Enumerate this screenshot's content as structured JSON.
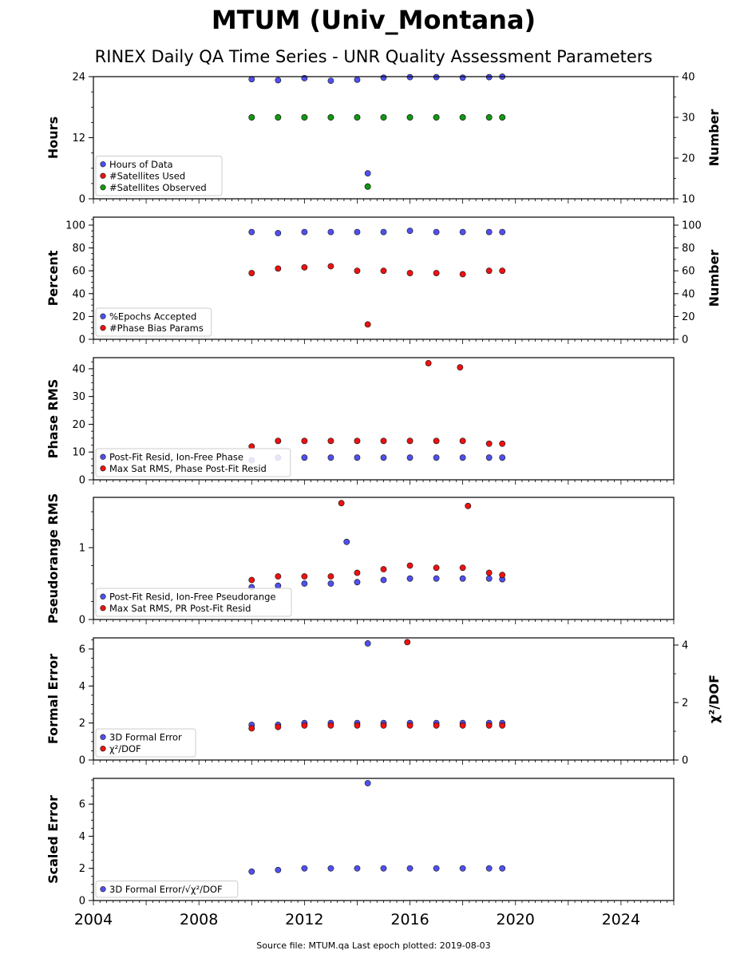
{
  "figure": {
    "title": "MTUM (Univ_Montana)",
    "subtitle": "RINEX Daily QA Time Series - UNR Quality Assessment Parameters",
    "footer": "Source file: MTUM.qa Last epoch plotted: 2019-08-03",
    "colors": {
      "blue": "#5050f0",
      "red": "#ee1111",
      "green": "#119911"
    }
  },
  "chart_data": [
    {
      "type": "scatter",
      "ylabel": "Hours",
      "ylabel_right": "Number",
      "xlim": [
        2004,
        2026
      ],
      "ylim": [
        0,
        24
      ],
      "ylim_right": [
        10,
        40
      ],
      "yticks": [
        0,
        12,
        24
      ],
      "yticks_right": [
        10,
        20,
        30,
        40
      ],
      "legend_placement": "lower-left",
      "series": [
        {
          "name": "Hours of Data",
          "axis": "left",
          "color": "blue",
          "x": [
            2010.0,
            2011.0,
            2012.0,
            2013.0,
            2014.0,
            2014.4,
            2015.0,
            2016.0,
            2017.0,
            2018.0,
            2019.0,
            2019.5
          ],
          "y": [
            23.5,
            23.3,
            23.7,
            23.2,
            23.4,
            5.0,
            23.8,
            23.9,
            23.9,
            23.8,
            23.9,
            24.0
          ]
        },
        {
          "name": "#Satellites Used",
          "axis": "right",
          "color": "red",
          "x": [
            2010.0,
            2011.0,
            2012.0,
            2013.0,
            2014.0,
            2014.4,
            2015.0,
            2016.0,
            2017.0,
            2018.0,
            2019.0,
            2019.5
          ],
          "y": [
            30,
            30,
            30,
            30,
            30,
            13,
            30,
            30,
            30,
            30,
            30,
            30
          ]
        },
        {
          "name": "#Satellites Observed",
          "axis": "right",
          "color": "green",
          "x": [
            2010.0,
            2011.0,
            2012.0,
            2013.0,
            2014.0,
            2014.4,
            2015.0,
            2016.0,
            2017.0,
            2018.0,
            2019.0,
            2019.5
          ],
          "y": [
            30,
            30,
            30,
            30,
            30,
            13,
            30,
            30,
            30,
            30,
            30,
            30
          ]
        }
      ]
    },
    {
      "type": "scatter",
      "ylabel": "Percent",
      "ylabel_right": "Number",
      "xlim": [
        2004,
        2026
      ],
      "ylim": [
        0,
        107
      ],
      "ylim_right": [
        0,
        107
      ],
      "yticks": [
        0,
        20,
        40,
        60,
        80,
        100
      ],
      "yticks_right": [
        0,
        20,
        40,
        60,
        80,
        100
      ],
      "legend_placement": "lower-left",
      "series": [
        {
          "name": "%Epochs Accepted",
          "axis": "left",
          "color": "blue",
          "x": [
            2010.0,
            2011.0,
            2012.0,
            2013.0,
            2014.0,
            2015.0,
            2016.0,
            2017.0,
            2018.0,
            2019.0,
            2019.5
          ],
          "y": [
            94,
            93,
            94,
            94,
            94,
            94,
            95,
            94,
            94,
            94,
            94
          ]
        },
        {
          "name": "#Phase Bias Params",
          "axis": "right",
          "color": "red",
          "x": [
            2010.0,
            2011.0,
            2012.0,
            2013.0,
            2014.0,
            2014.4,
            2015.0,
            2016.0,
            2017.0,
            2018.0,
            2019.0,
            2019.5
          ],
          "y": [
            58,
            62,
            63,
            64,
            60,
            13,
            60,
            58,
            58,
            57,
            60,
            60
          ]
        }
      ]
    },
    {
      "type": "scatter",
      "ylabel": "Phase RMS",
      "xlim": [
        2004,
        2026
      ],
      "ylim": [
        0,
        44
      ],
      "yticks": [
        0,
        10,
        20,
        30,
        40
      ],
      "legend_placement": "lower-left",
      "series": [
        {
          "name": "Post-Fit Resid, Ion-Free Phase",
          "color": "blue",
          "x": [
            2010.0,
            2011.0,
            2012.0,
            2013.0,
            2014.0,
            2015.0,
            2016.0,
            2017.0,
            2018.0,
            2019.0,
            2019.5
          ],
          "y": [
            7,
            8,
            8,
            8,
            8,
            8,
            8,
            8,
            8,
            8,
            8
          ]
        },
        {
          "name": "Max Sat RMS, Phase Post-Fit Resid",
          "color": "red",
          "x": [
            2010.0,
            2011.0,
            2012.0,
            2013.0,
            2014.0,
            2015.0,
            2016.0,
            2016.7,
            2017.0,
            2017.9,
            2018.0,
            2019.0,
            2019.5
          ],
          "y": [
            12,
            14,
            14,
            14,
            14,
            14,
            14,
            42,
            14,
            40.5,
            14,
            13,
            13
          ]
        }
      ]
    },
    {
      "type": "scatter",
      "ylabel": "Pseudorange RMS",
      "xlim": [
        2004,
        2026
      ],
      "ylim": [
        0,
        1.7
      ],
      "yticks": [
        0,
        1
      ],
      "legend_placement": "lower-left",
      "series": [
        {
          "name": "Post-Fit Resid, Ion-Free Pseudorange",
          "color": "blue",
          "x": [
            2010.0,
            2011.0,
            2012.0,
            2013.0,
            2013.6,
            2014.0,
            2015.0,
            2016.0,
            2017.0,
            2018.0,
            2019.0,
            2019.5
          ],
          "y": [
            0.45,
            0.47,
            0.5,
            0.5,
            1.08,
            0.52,
            0.55,
            0.57,
            0.57,
            0.57,
            0.57,
            0.56
          ]
        },
        {
          "name": "Max Sat RMS, PR Post-Fit Resid",
          "color": "red",
          "x": [
            2010.0,
            2011.0,
            2012.0,
            2013.0,
            2013.4,
            2014.0,
            2015.0,
            2016.0,
            2017.0,
            2018.0,
            2018.2,
            2019.0,
            2019.5
          ],
          "y": [
            0.55,
            0.6,
            0.6,
            0.6,
            1.62,
            0.65,
            0.7,
            0.75,
            0.72,
            0.72,
            1.58,
            0.65,
            0.62
          ]
        }
      ]
    },
    {
      "type": "scatter",
      "ylabel": "Formal Error",
      "ylabel_right": "χ²/DOF",
      "xlim": [
        2004,
        2026
      ],
      "ylim": [
        0,
        6.6
      ],
      "ylim_right": [
        0,
        4.25
      ],
      "yticks": [
        0,
        2,
        4,
        6
      ],
      "yticks_right": [
        0,
        2,
        4
      ],
      "legend_placement": "lower-left",
      "series": [
        {
          "name": "3D Formal Error",
          "axis": "left",
          "color": "blue",
          "x": [
            2010.0,
            2011.0,
            2012.0,
            2013.0,
            2014.0,
            2014.4,
            2015.0,
            2016.0,
            2017.0,
            2018.0,
            2019.0,
            2019.5
          ],
          "y": [
            1.9,
            1.9,
            2.0,
            2.0,
            2.0,
            6.3,
            2.0,
            2.0,
            2.0,
            2.0,
            2.0,
            2.0
          ]
        },
        {
          "name": "χ²/DOF",
          "axis": "right",
          "color": "red",
          "x": [
            2010.0,
            2011.0,
            2012.0,
            2013.0,
            2014.0,
            2015.0,
            2015.9,
            2016.0,
            2017.0,
            2018.0,
            2019.0,
            2019.5
          ],
          "y": [
            1.1,
            1.15,
            1.2,
            1.2,
            1.2,
            1.2,
            4.1,
            1.2,
            1.2,
            1.2,
            1.2,
            1.2
          ]
        }
      ]
    },
    {
      "type": "scatter",
      "ylabel": "Scaled Error",
      "xlim": [
        2004,
        2026
      ],
      "ylim": [
        0,
        7.6
      ],
      "yticks": [
        0,
        2,
        4,
        6
      ],
      "xticks": [
        2004,
        2008,
        2012,
        2016,
        2020,
        2024
      ],
      "legend_placement": "lower-left",
      "series": [
        {
          "name": "3D Formal Error/√χ²/DOF",
          "color": "blue",
          "x": [
            2010.0,
            2011.0,
            2012.0,
            2013.0,
            2014.0,
            2014.4,
            2015.0,
            2016.0,
            2017.0,
            2018.0,
            2019.0,
            2019.5
          ],
          "y": [
            1.8,
            1.9,
            2.0,
            2.0,
            2.0,
            7.3,
            2.0,
            2.0,
            2.0,
            2.0,
            2.0,
            2.0
          ]
        }
      ]
    }
  ]
}
